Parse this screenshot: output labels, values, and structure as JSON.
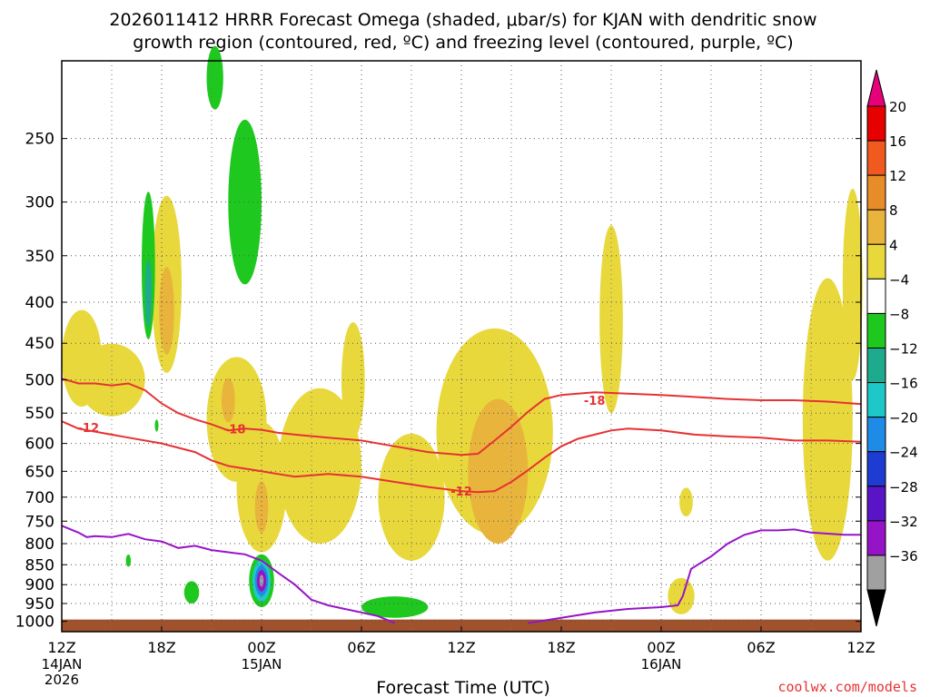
{
  "chart_data": {
    "type": "heatmap",
    "title_line1": "2026011412 HRRR Forecast Omega (shaded, μbar/s) for KJAN with dendritic snow",
    "title_line2": "growth region (contoured, red, ºC) and freezing level (contoured, purple, ºC)",
    "xlabel": "Forecast Time (UTC)",
    "ylabel": "",
    "credit": "coolwx.com/models",
    "x_range_hours": [
      0,
      48
    ],
    "y_range_hpa": [
      1030,
      200
    ],
    "y_scale": "log-pressure",
    "grid": true,
    "x_ticks": [
      {
        "hour": 0,
        "label": "12Z",
        "sub1": "14JAN",
        "sub2": "2026"
      },
      {
        "hour": 6,
        "label": "18Z",
        "sub1": "",
        "sub2": ""
      },
      {
        "hour": 12,
        "label": "00Z",
        "sub1": "15JAN",
        "sub2": ""
      },
      {
        "hour": 18,
        "label": "06Z",
        "sub1": "",
        "sub2": ""
      },
      {
        "hour": 24,
        "label": "12Z",
        "sub1": "",
        "sub2": ""
      },
      {
        "hour": 30,
        "label": "18Z",
        "sub1": "",
        "sub2": ""
      },
      {
        "hour": 36,
        "label": "00Z",
        "sub1": "16JAN",
        "sub2": ""
      },
      {
        "hour": 42,
        "label": "06Z",
        "sub1": "",
        "sub2": ""
      },
      {
        "hour": 48,
        "label": "12Z",
        "sub1": "",
        "sub2": ""
      }
    ],
    "y_ticks": [
      250,
      300,
      350,
      400,
      450,
      500,
      550,
      600,
      650,
      700,
      750,
      800,
      850,
      900,
      950,
      1000
    ],
    "colorbar": {
      "labels": [
        "20",
        "16",
        "12",
        "8",
        "4",
        "−4",
        "−8",
        "−12",
        "−16",
        "−20",
        "−24",
        "−28",
        "−32",
        "−36"
      ],
      "colors": [
        "#e60000",
        "#f05a1e",
        "#e88c28",
        "#e8b43c",
        "#e8d83c",
        "#ffffff",
        "#1ec81e",
        "#1eaa8c",
        "#1ec8c8",
        "#1e8ce6",
        "#1e3cd2",
        "#5a14c8",
        "#9614c8",
        "#a0a0a0"
      ],
      "top_color": "#e6007a",
      "bottom_color": "#000000"
    },
    "contours": [
      {
        "name": "-18",
        "color": "#e63232",
        "label_at": [
          [
            10.4,
            575
          ],
          [
            32.0,
            530
          ]
        ],
        "points": [
          [
            0,
            498
          ],
          [
            1,
            505
          ],
          [
            2,
            505
          ],
          [
            3,
            508
          ],
          [
            4,
            505
          ],
          [
            5,
            515
          ],
          [
            6,
            535
          ],
          [
            7,
            550
          ],
          [
            8,
            560
          ],
          [
            9,
            568
          ],
          [
            10,
            578
          ],
          [
            11,
            575
          ],
          [
            12,
            577
          ],
          [
            13,
            582
          ],
          [
            14,
            585
          ],
          [
            16,
            590
          ],
          [
            18,
            595
          ],
          [
            20,
            605
          ],
          [
            22,
            615
          ],
          [
            24,
            620
          ],
          [
            25,
            618
          ],
          [
            26,
            595
          ],
          [
            27,
            572
          ],
          [
            28,
            548
          ],
          [
            29,
            528
          ],
          [
            30,
            522
          ],
          [
            31,
            520
          ],
          [
            32,
            518
          ],
          [
            34,
            520
          ],
          [
            36,
            522
          ],
          [
            38,
            525
          ],
          [
            40,
            528
          ],
          [
            42,
            530
          ],
          [
            44,
            530
          ],
          [
            46,
            532
          ],
          [
            48,
            536
          ]
        ]
      },
      {
        "name": "-12",
        "color": "#e63232",
        "label_at": [
          [
            1.6,
            573
          ],
          [
            24.0,
            688
          ]
        ],
        "points": [
          [
            0,
            563
          ],
          [
            1,
            575
          ],
          [
            2,
            580
          ],
          [
            4,
            590
          ],
          [
            6,
            600
          ],
          [
            8,
            615
          ],
          [
            9,
            630
          ],
          [
            10,
            640
          ],
          [
            11,
            645
          ],
          [
            12,
            650
          ],
          [
            13,
            655
          ],
          [
            14,
            660
          ],
          [
            16,
            655
          ],
          [
            18,
            660
          ],
          [
            20,
            670
          ],
          [
            22,
            680
          ],
          [
            24,
            688
          ],
          [
            25,
            690
          ],
          [
            26,
            688
          ],
          [
            27,
            670
          ],
          [
            28,
            648
          ],
          [
            29,
            625
          ],
          [
            30,
            605
          ],
          [
            31,
            592
          ],
          [
            32,
            585
          ],
          [
            33,
            578
          ],
          [
            34,
            575
          ],
          [
            36,
            578
          ],
          [
            38,
            585
          ],
          [
            40,
            588
          ],
          [
            42,
            590
          ],
          [
            44,
            595
          ],
          [
            46,
            595
          ],
          [
            48,
            597
          ]
        ]
      },
      {
        "name": "freezing",
        "color": "#9614c8",
        "label_at": [],
        "points": [
          [
            0,
            760
          ],
          [
            1,
            775
          ],
          [
            1.5,
            785
          ],
          [
            2,
            783
          ],
          [
            3,
            785
          ],
          [
            4,
            778
          ],
          [
            5,
            790
          ],
          [
            6,
            795
          ],
          [
            7,
            810
          ],
          [
            8,
            805
          ],
          [
            9,
            815
          ],
          [
            10,
            820
          ],
          [
            11,
            825
          ],
          [
            12,
            840
          ],
          [
            13,
            870
          ],
          [
            14,
            900
          ],
          [
            15,
            940
          ],
          [
            16,
            955
          ],
          [
            17,
            965
          ],
          [
            18,
            975
          ],
          [
            19,
            985
          ],
          [
            20,
            1005
          ]
        ]
      },
      {
        "name": "freezing-2",
        "color": "#9614c8",
        "label_at": [],
        "points": [
          [
            28,
            1005
          ],
          [
            30,
            990
          ],
          [
            32,
            975
          ],
          [
            34,
            965
          ],
          [
            36,
            960
          ],
          [
            37,
            955
          ],
          [
            37.3,
            930
          ],
          [
            37.8,
            860
          ],
          [
            39,
            830
          ],
          [
            40,
            800
          ],
          [
            41,
            780
          ],
          [
            42,
            770
          ],
          [
            43,
            770
          ],
          [
            44,
            768
          ],
          [
            45,
            775
          ],
          [
            47,
            780
          ],
          [
            48,
            780
          ]
        ]
      }
    ],
    "shaded_regions": [
      {
        "value": 6,
        "center": [
          1.2,
          470
        ],
        "radius": [
          1.2,
          70
        ],
        "color": "#e8d83c"
      },
      {
        "value": 6,
        "center": [
          3.0,
          500
        ],
        "radius": [
          2.0,
          55
        ],
        "color": "#e8d83c"
      },
      {
        "value": 8,
        "center": [
          6.3,
          380
        ],
        "radius": [
          0.9,
          110
        ],
        "color": "#e8d83c"
      },
      {
        "value": 8,
        "center": [
          6.3,
          410
        ],
        "radius": [
          0.45,
          55
        ],
        "color": "#e8b43c"
      },
      {
        "value": -8,
        "center": [
          5.2,
          360
        ],
        "radius": [
          0.4,
          85
        ],
        "color": "#1ec81e"
      },
      {
        "value": -10,
        "center": [
          5.2,
          390
        ],
        "radius": [
          0.2,
          40
        ],
        "color": "#1eaa8c"
      },
      {
        "value": -6,
        "center": [
          11.0,
          300
        ],
        "radius": [
          1.0,
          80
        ],
        "color": "#1ec81e"
      },
      {
        "value": -6,
        "center": [
          9.2,
          210
        ],
        "radius": [
          0.5,
          20
        ],
        "color": "#1ec81e"
      },
      {
        "value": 6,
        "center": [
          10.5,
          560
        ],
        "radius": [
          1.8,
          110
        ],
        "color": "#e8d83c"
      },
      {
        "value": 10,
        "center": [
          10.0,
          530
        ],
        "radius": [
          0.4,
          35
        ],
        "color": "#e8b43c"
      },
      {
        "value": 6,
        "center": [
          12.0,
          680
        ],
        "radius": [
          1.5,
          140
        ],
        "color": "#e8d83c"
      },
      {
        "value": 10,
        "center": [
          12.0,
          720
        ],
        "radius": [
          0.4,
          55
        ],
        "color": "#e8b43c"
      },
      {
        "value": 6,
        "center": [
          15.5,
          640
        ],
        "radius": [
          2.5,
          160
        ],
        "color": "#e8d83c"
      },
      {
        "value": 6,
        "center": [
          17.5,
          500
        ],
        "radius": [
          0.7,
          90
        ],
        "color": "#e8d83c"
      },
      {
        "value": 6,
        "center": [
          21.0,
          700
        ],
        "radius": [
          2.0,
          140
        ],
        "color": "#e8d83c"
      },
      {
        "value": 6,
        "center": [
          26.0,
          580
        ],
        "radius": [
          3.5,
          200
        ],
        "color": "#e8d83c"
      },
      {
        "value": 10,
        "center": [
          26.2,
          650
        ],
        "radius": [
          1.8,
          150
        ],
        "color": "#e8b43c"
      },
      {
        "value": 6,
        "center": [
          33.0,
          420
        ],
        "radius": [
          0.7,
          130
        ],
        "color": "#e8d83c"
      },
      {
        "value": 6,
        "center": [
          37.5,
          710
        ],
        "radius": [
          0.4,
          30
        ],
        "color": "#e8d83c"
      },
      {
        "value": 6,
        "center": [
          37.2,
          930
        ],
        "radius": [
          0.8,
          50
        ],
        "color": "#e8d83c"
      },
      {
        "value": 6,
        "center": [
          46.0,
          560
        ],
        "radius": [
          1.5,
          280
        ],
        "color": "#e8d83c"
      },
      {
        "value": 6,
        "center": [
          47.5,
          380
        ],
        "radius": [
          0.6,
          120
        ],
        "color": "#e8d83c"
      },
      {
        "value": -8,
        "center": [
          12.0,
          890
        ],
        "radius": [
          0.75,
          70
        ],
        "color": "#1ec81e"
      },
      {
        "value": -14,
        "center": [
          12.0,
          890
        ],
        "radius": [
          0.55,
          55
        ],
        "color": "#1ec8c8"
      },
      {
        "value": -20,
        "center": [
          12.0,
          890
        ],
        "radius": [
          0.4,
          40
        ],
        "color": "#1e8ce6"
      },
      {
        "value": -28,
        "center": [
          12.0,
          890
        ],
        "radius": [
          0.28,
          28
        ],
        "color": "#9614c8"
      },
      {
        "value": -34,
        "center": [
          12.0,
          890
        ],
        "radius": [
          0.12,
          15
        ],
        "color": "#a0a0a0"
      },
      {
        "value": -7,
        "center": [
          20.0,
          960
        ],
        "radius": [
          2.0,
          30
        ],
        "color": "#1ec81e"
      },
      {
        "value": -7,
        "center": [
          7.8,
          920
        ],
        "radius": [
          0.45,
          30
        ],
        "color": "#1ec81e"
      },
      {
        "value": -7,
        "center": [
          4.0,
          840
        ],
        "radius": [
          0.15,
          15
        ],
        "color": "#1ec81e"
      },
      {
        "value": -7,
        "center": [
          5.7,
          570
        ],
        "radius": [
          0.1,
          10
        ],
        "color": "#1ec81e"
      }
    ],
    "ground_color": "#a0522d"
  }
}
